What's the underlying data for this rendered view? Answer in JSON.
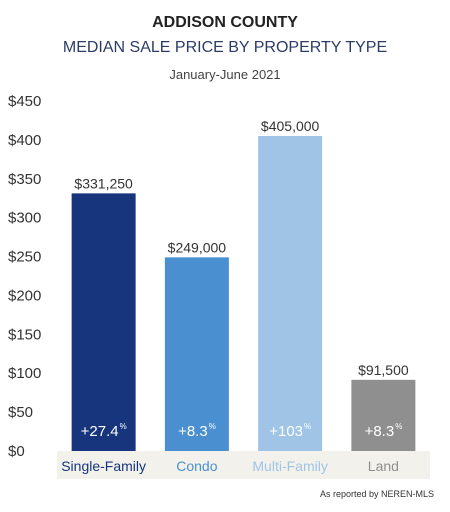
{
  "header": {
    "title": "ADDISON COUNTY",
    "subtitle": "MEDIAN SALE PRICE BY PROPERTY TYPE",
    "period": "January-June 2021"
  },
  "source_note": "As reported by NEREN-MLS",
  "chart_data": {
    "type": "bar",
    "title": "ADDISON COUNTY",
    "subtitle": "MEDIAN SALE PRICE BY PROPERTY TYPE",
    "xlabel": "",
    "ylabel": "",
    "units": "thousands of dollars",
    "ylim": [
      0,
      450
    ],
    "yticks": [
      0,
      50,
      100,
      150,
      200,
      250,
      300,
      350,
      400,
      450
    ],
    "ytick_labels": [
      "$0",
      "$50",
      "$100",
      "$150",
      "$200",
      "$250",
      "$300",
      "$350",
      "$400",
      "$450"
    ],
    "grid": false,
    "categories": [
      "Single-Family",
      "Condo",
      "Multi-Family",
      "Land"
    ],
    "values": [
      331.25,
      249,
      405,
      91.5
    ],
    "value_labels": [
      "$331,250",
      "$249,000",
      "$405,000",
      "$91,500"
    ],
    "pct_change": [
      "+27.4",
      "+8.3",
      "+103",
      "+8.3"
    ],
    "pct_unit": "%",
    "colors": [
      "#17357c",
      "#4a90d0",
      "#9fc4e6",
      "#8f8f8f"
    ],
    "category_colors": [
      "#17357c",
      "#4a90d0",
      "#9fc4e6",
      "#8f8f8f"
    ],
    "category_band_color": "#f3f1ec"
  }
}
